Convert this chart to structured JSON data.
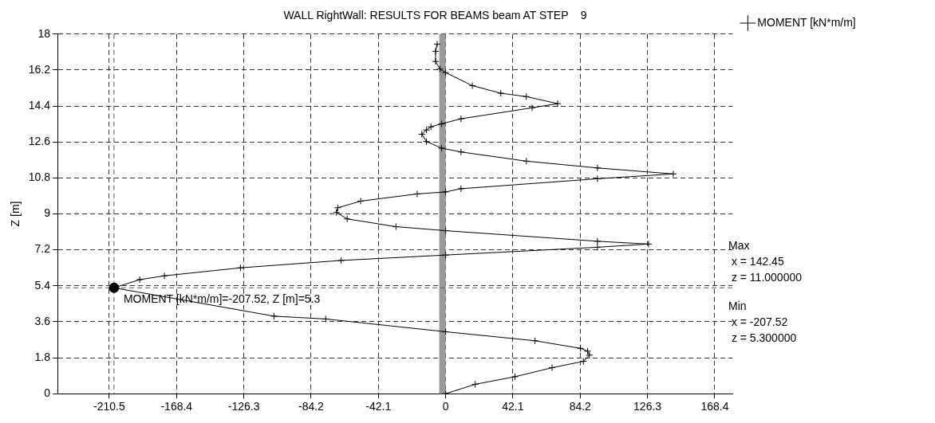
{
  "chart_data": {
    "type": "line",
    "title": "WALL RightWall: RESULTS FOR BEAMS beam AT STEP    9",
    "ylabel": "Z [m]",
    "series": [
      {
        "name": "MOMENT [kN*m/m]",
        "color": "#000000",
        "x": [
          0,
          18.5,
          43.4,
          66.6,
          86.2,
          90,
          88.8,
          84.4,
          55.9,
          0,
          -75,
          -107.4,
          -207.52,
          -191.4,
          -176,
          -128.4,
          -65.4,
          0,
          95,
          127,
          95,
          0,
          -31.1,
          -61.6,
          -68.3,
          -67.4,
          -53.1,
          -17.8,
          0,
          9.6,
          95,
          142.45,
          95,
          50.5,
          9.6,
          -2.5,
          -12,
          -14.9,
          -12,
          -9.2,
          -2.5,
          9.6,
          54.1,
          70.1,
          50.5,
          34.5,
          16.7,
          0,
          -3.5,
          -6.3,
          -6.3,
          -5.3
        ],
        "values": [
          0,
          0.47,
          0.85,
          1.3,
          1.62,
          1.93,
          2.13,
          2.27,
          2.65,
          3.1,
          3.74,
          3.88,
          5.3,
          5.71,
          5.9,
          6.3,
          6.67,
          6.94,
          7.33,
          7.49,
          7.63,
          8.16,
          8.36,
          8.75,
          9.07,
          9.31,
          9.64,
          10.0,
          10.1,
          10.26,
          10.76,
          11.0,
          11.3,
          11.64,
          12.1,
          12.29,
          12.62,
          12.99,
          13.2,
          13.36,
          13.51,
          13.76,
          14.31,
          14.52,
          14.87,
          15.04,
          15.42,
          16.07,
          16.25,
          16.63,
          17.14,
          17.5
        ]
      },
      {
        "type": "scatter",
        "color": "#000000",
        "marker": "circle",
        "x": [
          -207.52
        ],
        "values": [
          5.3
        ]
      }
    ],
    "xlim": [
      -242.9,
      179.6
    ],
    "ylim": [
      0,
      18
    ],
    "xticks": [
      -210.5,
      -168.4,
      -126.3,
      -84.2,
      -42.1,
      0,
      42.1,
      84.2,
      126.3,
      168.4
    ],
    "yticks": [
      0,
      1.8,
      3.6,
      5.4,
      7.2,
      9,
      10.8,
      12.6,
      14.4,
      16.2,
      18
    ],
    "grid": true,
    "legend": "top right",
    "marker": "cross",
    "line_style": "solid",
    "ref_lines": [
      {
        "axis": "y",
        "value": 5.3,
        "color": "#555555",
        "line_style": "dashed"
      },
      {
        "axis": "x",
        "value": -207.52,
        "color": "#555555",
        "line_style": "dashed"
      }
    ],
    "bands": [
      {
        "axis": "x",
        "from": -4,
        "to": 0,
        "color": "#9a9a9a"
      }
    ],
    "annotations": [
      {
        "text": "MOMENT [kN*m/m]=-207.52, Z [m]=5.3",
        "x": -207.52,
        "y": 5.3
      },
      "Max\n x = 142.45\n z = 11.000000",
      "Min\n x = -207.52\n z = 5.300000"
    ]
  }
}
